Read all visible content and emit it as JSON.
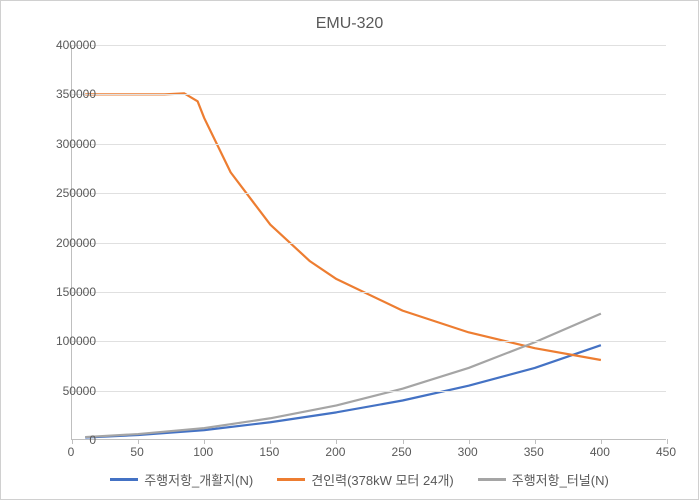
{
  "chart": {
    "type": "line",
    "title": "EMU-320",
    "title_fontsize": 16,
    "label_fontsize": 12,
    "background_color": "#ffffff",
    "grid_color": "#e0e0e0",
    "axis_color": "#bfbfbf",
    "text_color": "#595959",
    "xlim": [
      0,
      450
    ],
    "ylim": [
      0,
      400000
    ],
    "xtick_step": 50,
    "ytick_step": 50000,
    "xticks": [
      0,
      50,
      100,
      150,
      200,
      250,
      300,
      350,
      400,
      450
    ],
    "yticks": [
      0,
      50000,
      100000,
      150000,
      200000,
      250000,
      300000,
      350000,
      400000
    ],
    "line_width": 2.2,
    "series": [
      {
        "name": "주행저항_개활지(N)",
        "color": "#4472c4",
        "x": [
          10,
          50,
          100,
          150,
          200,
          250,
          300,
          350,
          400
        ],
        "y": [
          2500,
          5000,
          10000,
          18000,
          28000,
          40000,
          55000,
          73000,
          96000
        ]
      },
      {
        "name": "견인력(378kW 모터 24개)",
        "color": "#ed7d31",
        "x": [
          10,
          40,
          70,
          85,
          95,
          100,
          120,
          150,
          180,
          200,
          250,
          300,
          350,
          400
        ],
        "y": [
          350000,
          350000,
          350000,
          351000,
          343000,
          326000,
          271000,
          218000,
          181000,
          163000,
          131000,
          109000,
          93000,
          81000
        ]
      },
      {
        "name": "주행저항_터널(N)",
        "color": "#a5a5a5",
        "x": [
          10,
          50,
          100,
          150,
          200,
          250,
          300,
          350,
          400
        ],
        "y": [
          3000,
          6000,
          12000,
          22000,
          35000,
          52000,
          73000,
          99000,
          128000
        ]
      }
    ],
    "legend_position": "bottom"
  }
}
